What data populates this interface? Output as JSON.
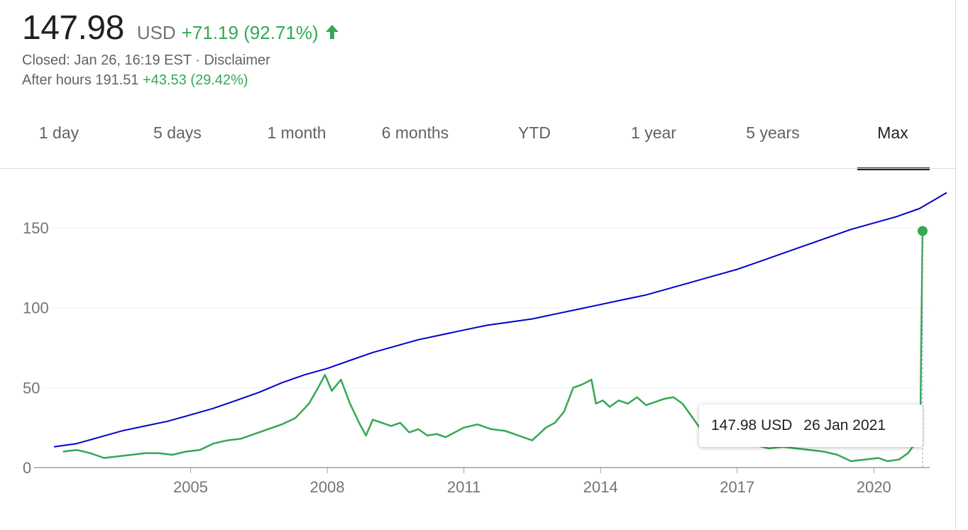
{
  "quote": {
    "price": "147.98",
    "currency": "USD",
    "change": "+71.19 (92.71%)",
    "change_direction": "up",
    "closed_text": "Closed: Jan 26, 16:19 EST",
    "separator": " · ",
    "disclaimer": "Disclaimer",
    "after_hours_label": "After hours 191.51",
    "after_hours_change": "+43.53 (29.42%)"
  },
  "tabs": [
    {
      "label": "1 day"
    },
    {
      "label": "5 days"
    },
    {
      "label": "1 month"
    },
    {
      "label": "6 months"
    },
    {
      "label": "YTD"
    },
    {
      "label": "1 year"
    },
    {
      "label": "5 years"
    },
    {
      "label": "Max",
      "active": true
    }
  ],
  "tooltip": {
    "price": "147.98 USD",
    "date": "26 Jan 2021"
  },
  "colors": {
    "price_line": "#34a853",
    "overlay_line": "#0000cc",
    "accent_green": "#34a853",
    "axis": "#9aa0a6",
    "grid": "#f1f3f4"
  },
  "chart_data": {
    "type": "line",
    "title": "",
    "xlabel": "",
    "ylabel": "",
    "x_ticks": [
      2005,
      2008,
      2011,
      2014,
      2017,
      2020
    ],
    "y_ticks": [
      0,
      50,
      100,
      150
    ],
    "xlim": [
      2002.0,
      2021.6
    ],
    "ylim": [
      0,
      175
    ],
    "grid": true,
    "series": [
      {
        "name": "",
        "color": "#34a853",
        "x": [
          2002.2,
          2002.5,
          2002.8,
          2003.1,
          2003.4,
          2003.7,
          2004.0,
          2004.3,
          2004.6,
          2004.9,
          2005.2,
          2005.5,
          2005.8,
          2006.1,
          2006.4,
          2006.7,
          2007.0,
          2007.3,
          2007.6,
          2007.8,
          2007.95,
          2008.1,
          2008.3,
          2008.5,
          2008.7,
          2008.85,
          2009.0,
          2009.2,
          2009.4,
          2009.6,
          2009.8,
          2010.0,
          2010.2,
          2010.4,
          2010.6,
          2010.8,
          2011.0,
          2011.3,
          2011.6,
          2011.9,
          2012.2,
          2012.5,
          2012.8,
          2013.0,
          2013.2,
          2013.4,
          2013.6,
          2013.8,
          2013.9,
          2014.05,
          2014.2,
          2014.4,
          2014.6,
          2014.8,
          2015.0,
          2015.2,
          2015.4,
          2015.6,
          2015.8,
          2016.0,
          2016.2,
          2016.5,
          2016.8,
          2017.1,
          2017.4,
          2017.7,
          2018.0,
          2018.3,
          2018.6,
          2018.9,
          2019.2,
          2019.5,
          2019.8,
          2020.1,
          2020.3,
          2020.55,
          2020.75,
          2020.85,
          2020.95,
          2021.02,
          2021.04,
          2021.07
        ],
        "values": [
          10,
          11,
          9,
          6,
          7,
          8,
          9,
          9,
          8,
          10,
          11,
          15,
          17,
          18,
          21,
          24,
          27,
          31,
          40,
          50,
          58,
          48,
          55,
          40,
          28,
          20,
          30,
          28,
          26,
          28,
          22,
          24,
          20,
          21,
          19,
          22,
          25,
          27,
          24,
          23,
          20,
          17,
          25,
          28,
          35,
          50,
          52,
          55,
          40,
          42,
          38,
          42,
          40,
          44,
          39,
          41,
          43,
          44,
          40,
          32,
          24,
          21,
          18,
          16,
          14,
          12,
          13,
          12,
          11,
          10,
          8,
          4,
          5,
          6,
          4,
          5,
          9,
          13,
          14,
          20,
          80,
          147.98
        ]
      },
      {
        "name": "",
        "color": "#0000cc",
        "x": [
          2002.0,
          2002.5,
          2003.0,
          2003.5,
          2004.0,
          2004.5,
          2005.0,
          2005.5,
          2006.0,
          2006.5,
          2007.0,
          2007.5,
          2008.0,
          2008.5,
          2009.0,
          2009.5,
          2010.0,
          2010.5,
          2011.0,
          2011.5,
          2012.0,
          2012.5,
          2013.0,
          2013.5,
          2014.0,
          2014.5,
          2015.0,
          2015.5,
          2016.0,
          2016.5,
          2017.0,
          2017.5,
          2018.0,
          2018.5,
          2019.0,
          2019.5,
          2020.0,
          2020.5,
          2021.0,
          2021.3,
          2021.6
        ],
        "values": [
          13,
          15,
          19,
          23,
          26,
          29,
          33,
          37,
          42,
          47,
          53,
          58,
          62,
          67,
          72,
          76,
          80,
          83,
          86,
          89,
          91,
          93,
          96,
          99,
          102,
          105,
          108,
          112,
          116,
          120,
          124,
          129,
          134,
          139,
          144,
          149,
          153,
          157,
          162,
          167,
          172
        ]
      }
    ]
  }
}
